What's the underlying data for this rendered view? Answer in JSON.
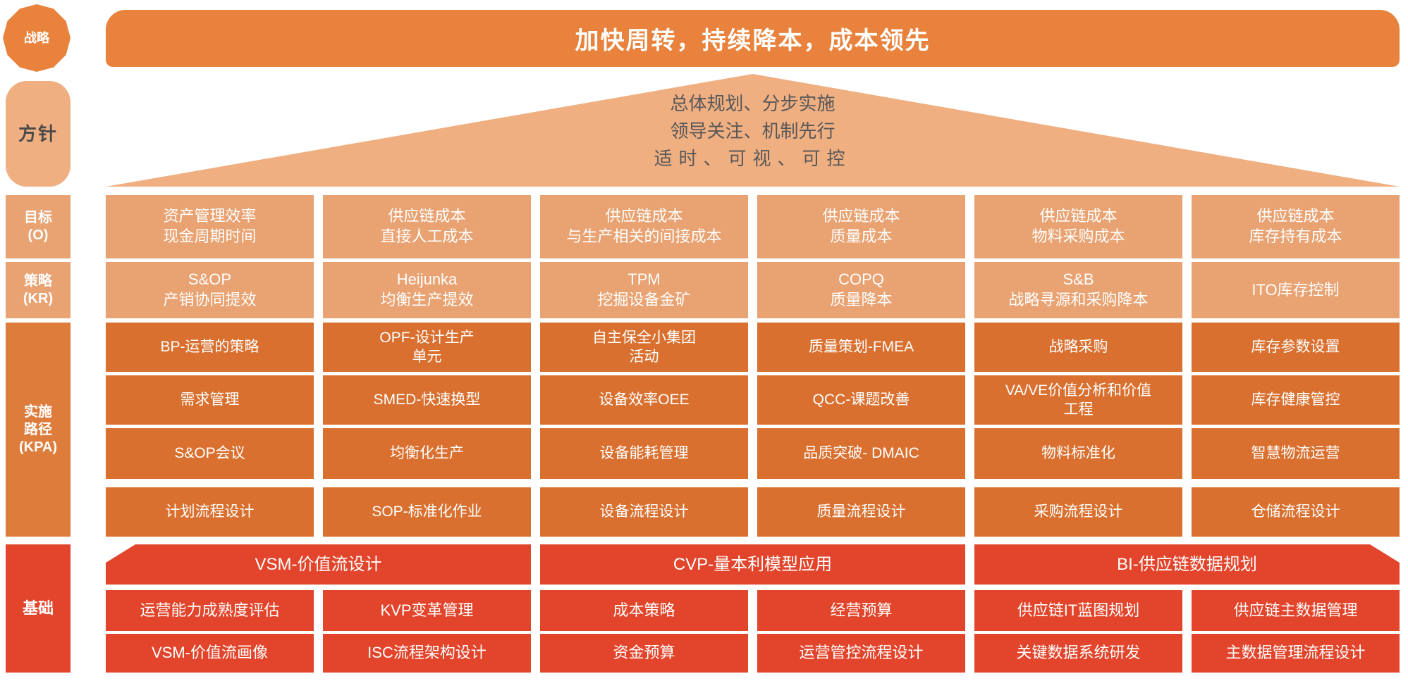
{
  "palette": {
    "orange_strong": "#E8823C",
    "orange_light": "#F0AF81",
    "orange_medium": "#E9A271",
    "orange_deep": "#D9702F",
    "red": "#E2452B",
    "dark_text": "#4A4A4A"
  },
  "left_rail": {
    "strategy": "战略",
    "policy": "方针",
    "objective": "目标\n(O)",
    "strategy_kr": "策略\n(KR)",
    "kpa": "实施\n路径\n(KPA)",
    "foundation": "基础"
  },
  "banner": {
    "text": "加快周转，持续降本，成本领先"
  },
  "policy_triangle": {
    "lines": [
      "总体规划、分步实施",
      "领导关注、机制先行",
      "适时、可视、可控"
    ]
  },
  "rows": {
    "objectives": [
      "资产管理效率\n现金周期时间",
      "供应链成本\n直接人工成本",
      "供应链成本\n与生产相关的间接成本",
      "供应链成本\n质量成本",
      "供应链成本\n物料采购成本",
      "供应链成本\n库存持有成本"
    ],
    "strategies": [
      "S&OP\n产销协同提效",
      "Heijunka\n均衡生产提效",
      "TPM\n挖掘设备金矿",
      "COPQ\n质量降本",
      "S&B\n战略寻源和采购降本",
      "ITO库存控制"
    ],
    "kpa": [
      [
        "BP-运营的策略",
        "OPF-设计生产\n单元",
        "自主保全小集团\n活动",
        "质量策划-FMEA",
        "战略采购",
        "库存参数设置"
      ],
      [
        "需求管理",
        "SMED-快速换型",
        "设备效率OEE",
        "QCC-课题改善",
        "VA/VE价值分析和价值\n工程",
        "库存健康管控"
      ],
      [
        "S&OP会议",
        "均衡化生产",
        "设备能耗管理",
        "品质突破- DMAIC",
        "物料标准化",
        "智慧物流运营"
      ],
      [
        "计划流程设计",
        "SOP-标准化作业",
        "设备流程设计",
        "质量流程设计",
        "采购流程设计",
        "仓储流程设计"
      ]
    ],
    "foundation_headers": [
      "VSM-价值流设计",
      "CVP-量本利模型应用",
      "BI-供应链数据规划"
    ],
    "foundation": [
      [
        "运营能力成熟度评估",
        "KVP变革管理",
        "成本策略",
        "经营预算",
        "供应链IT蓝图规划",
        "供应链主数据管理"
      ],
      [
        "VSM-价值流画像",
        "ISC流程架构设计",
        "资金预算",
        "运营管控流程设计",
        "关键数据系统研发",
        "主数据管理流程设计"
      ]
    ]
  }
}
